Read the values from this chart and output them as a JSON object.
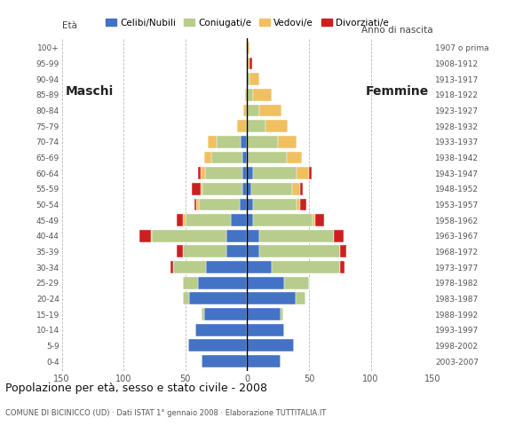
{
  "age_groups": [
    "0-4",
    "5-9",
    "10-14",
    "15-19",
    "20-24",
    "25-29",
    "30-34",
    "35-39",
    "40-44",
    "45-49",
    "50-54",
    "55-59",
    "60-64",
    "65-69",
    "70-74",
    "75-79",
    "80-84",
    "85-89",
    "90-94",
    "95-99",
    "100+"
  ],
  "birth_years": [
    "2003-2007",
    "1998-2002",
    "1993-1997",
    "1988-1992",
    "1983-1987",
    "1978-1982",
    "1973-1977",
    "1968-1972",
    "1963-1967",
    "1958-1962",
    "1953-1957",
    "1948-1952",
    "1943-1947",
    "1938-1942",
    "1933-1937",
    "1928-1932",
    "1923-1927",
    "1918-1922",
    "1913-1917",
    "1908-1912",
    "1907 o prima"
  ],
  "male": {
    "celibi": [
      37,
      48,
      42,
      35,
      47,
      40,
      33,
      17,
      17,
      13,
      6,
      4,
      4,
      4,
      5,
      0,
      0,
      0,
      0,
      0,
      0
    ],
    "coniugati": [
      0,
      0,
      0,
      2,
      5,
      12,
      27,
      35,
      60,
      37,
      33,
      32,
      30,
      25,
      20,
      0,
      0,
      0,
      0,
      0,
      0
    ],
    "vedovi": [
      0,
      0,
      0,
      0,
      0,
      0,
      0,
      0,
      1,
      2,
      2,
      2,
      4,
      6,
      7,
      8,
      3,
      2,
      0,
      0,
      0
    ],
    "divorziati": [
      0,
      0,
      0,
      0,
      0,
      0,
      2,
      5,
      9,
      5,
      2,
      7,
      2,
      0,
      0,
      0,
      0,
      0,
      0,
      0,
      0
    ]
  },
  "female": {
    "celibi": [
      27,
      38,
      30,
      27,
      39,
      30,
      20,
      10,
      10,
      5,
      5,
      3,
      5,
      0,
      0,
      0,
      0,
      0,
      0,
      0,
      0
    ],
    "coniugati": [
      0,
      0,
      0,
      2,
      8,
      20,
      55,
      65,
      60,
      48,
      35,
      33,
      35,
      32,
      25,
      15,
      10,
      5,
      2,
      0,
      0
    ],
    "vedovi": [
      0,
      0,
      0,
      0,
      0,
      0,
      0,
      0,
      0,
      2,
      3,
      7,
      10,
      12,
      15,
      18,
      18,
      15,
      8,
      2,
      2
    ],
    "divorziati": [
      0,
      0,
      0,
      0,
      0,
      0,
      4,
      5,
      8,
      7,
      5,
      2,
      2,
      0,
      0,
      0,
      0,
      0,
      0,
      2,
      0
    ]
  },
  "colors": {
    "celibi": "#4472c4",
    "coniugati": "#b8cc8c",
    "vedovi": "#f0c060",
    "divorziati": "#cc2020"
  },
  "legend_labels": [
    "Celibi/Nubili",
    "Coniugati/e",
    "Vedovi/e",
    "Divorziati/e"
  ],
  "title": "Popolazione per età, sesso e stato civile - 2008",
  "subtitle": "COMUNE DI BICINICCO (UD) · Dati ISTAT 1° gennaio 2008 · Elaborazione TUTTITALIA.IT",
  "ylabel_left": "Età",
  "ylabel_right": "Anno di nascita",
  "label_maschi": "Maschi",
  "label_femmine": "Femmine",
  "xlim": 150,
  "bg_color": "#ffffff",
  "plot_bg_color": "#ffffff",
  "grid_color": "#bbbbbb"
}
